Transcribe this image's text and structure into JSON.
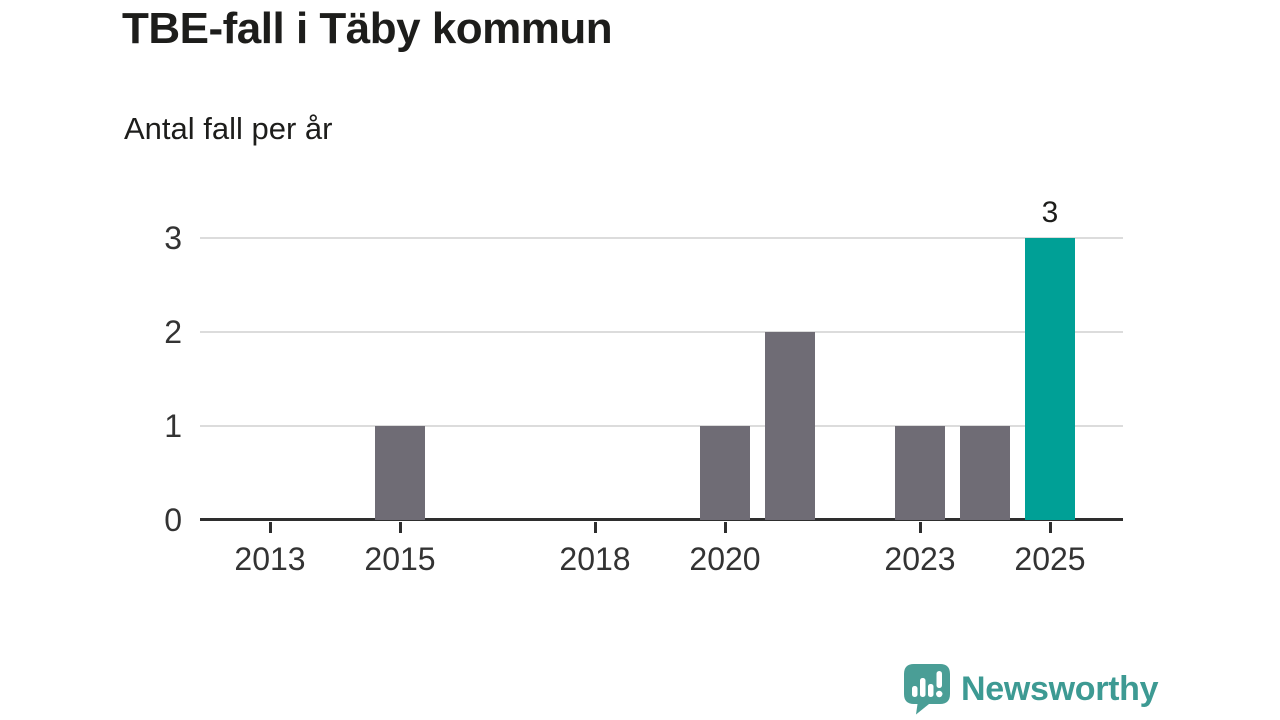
{
  "header": {
    "title": "TBE-fall i Täby kommun",
    "subtitle": "Antal fall per år"
  },
  "chart_data": {
    "type": "bar",
    "title": "TBE-fall i Täby kommun",
    "subtitle": "Antal fall per år",
    "categories": [
      "2013",
      "2014",
      "2015",
      "2016",
      "2017",
      "2018",
      "2019",
      "2020",
      "2021",
      "2022",
      "2023",
      "2024",
      "2025"
    ],
    "values": [
      0,
      0,
      1,
      0,
      0,
      0,
      0,
      1,
      2,
      0,
      1,
      1,
      3
    ],
    "xlabel": "",
    "ylabel": "Antal fall",
    "ylim": [
      0,
      3
    ],
    "y_ticks": [
      0,
      1,
      2,
      3
    ],
    "x_tick_labels": [
      "2013",
      "2015",
      "2018",
      "2020",
      "2023",
      "2025"
    ],
    "grid": "horizontal",
    "legend": "none",
    "highlight_category": "2025",
    "bar_value_labels": [
      {
        "category": "2025",
        "text": "3"
      }
    ],
    "colors": {
      "bar": "#6f6c75",
      "highlight": "#00a096",
      "gridline": "#dcdcdc",
      "axis": "#2e2e2e",
      "tick_label": "#333333",
      "value_label": "#1d1d1b"
    }
  },
  "footer": {
    "brand": "Newsworthy",
    "logo_icon": "speech-bubble-bar-chart-icon",
    "brand_color": "#3d9a93",
    "icon_color": "#4a9e96"
  }
}
